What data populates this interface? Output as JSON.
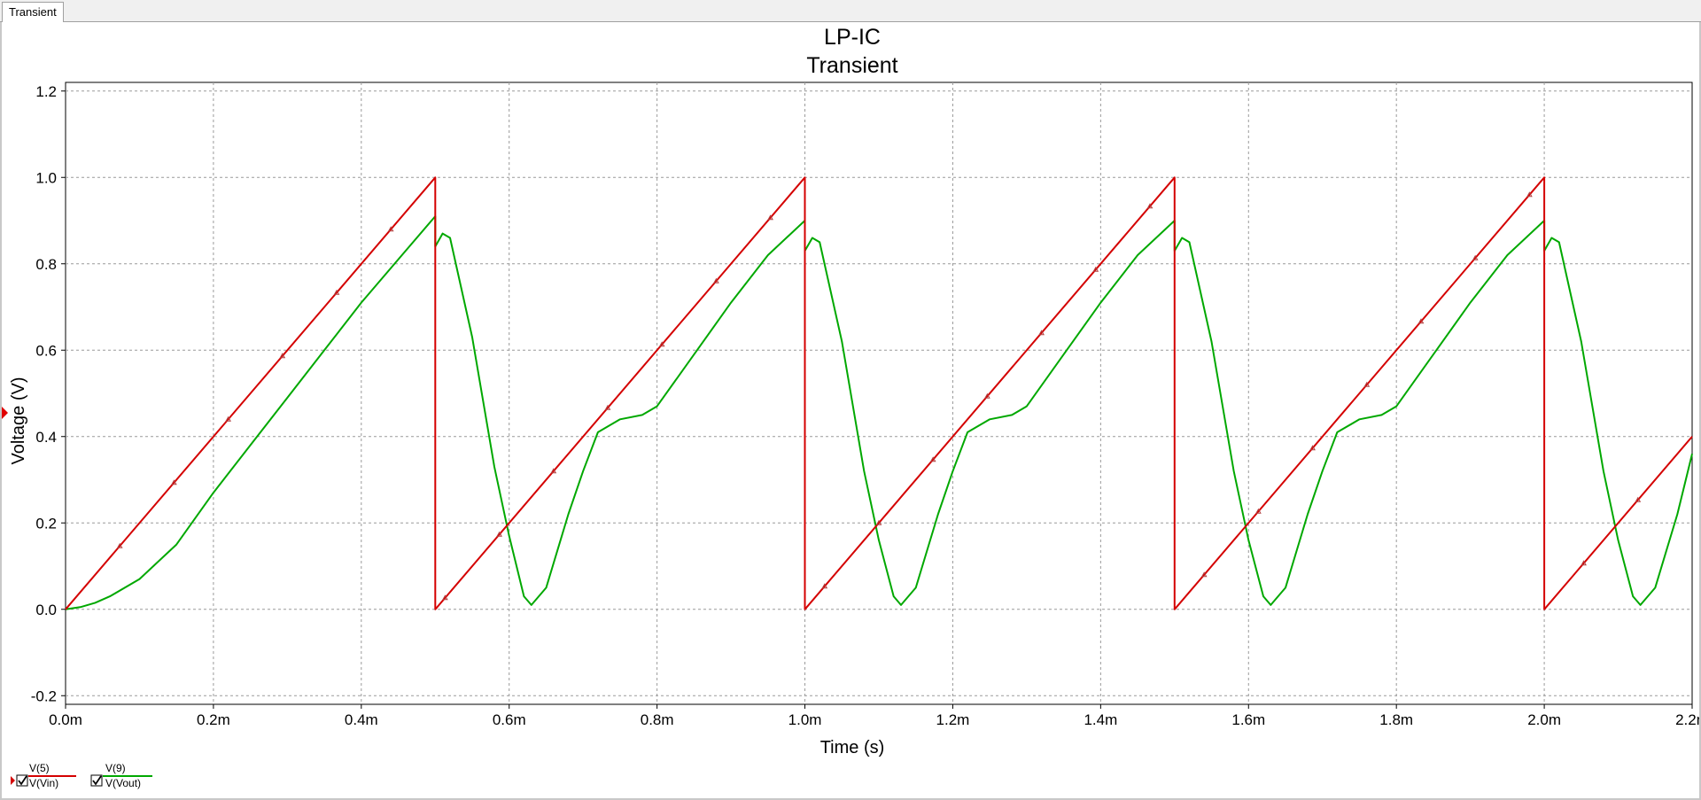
{
  "tabs": [
    {
      "label": "Transient"
    }
  ],
  "chart_data": {
    "type": "line",
    "title": "LP-IC",
    "subtitle": "Transient",
    "xlabel": "Time (s)",
    "ylabel": "Voltage (V)",
    "xlim": [
      0,
      0.0022
    ],
    "ylim": [
      -0.22,
      1.22
    ],
    "x_ticks": [
      0,
      0.0002,
      0.0004,
      0.0006,
      0.0008,
      0.001,
      0.0012,
      0.0014,
      0.0016,
      0.0018,
      0.002,
      0.0022
    ],
    "x_tick_labels": [
      "0.0m",
      "0.2m",
      "0.4m",
      "0.6m",
      "0.8m",
      "1.0m",
      "1.2m",
      "1.4m",
      "1.6m",
      "1.8m",
      "2.0m",
      "2.2m"
    ],
    "y_ticks": [
      -0.2,
      0,
      0.2,
      0.4,
      0.6,
      0.8,
      1.0,
      1.2
    ],
    "y_tick_labels": [
      "-0.2",
      "0.0",
      "0.2",
      "0.4",
      "0.6",
      "0.8",
      "1.0",
      "1.2"
    ],
    "grid": true,
    "legend_position": "bottom-left",
    "series": [
      {
        "name": "V(Vin)",
        "probe": "V(5)",
        "color": "#d40000",
        "marker": "triangle",
        "visible": true,
        "x": [
          0,
          0.0005,
          0.0005,
          0.001,
          0.001,
          0.0015,
          0.0015,
          0.002,
          0.002,
          0.0022
        ],
        "y": [
          0,
          1.0,
          0,
          1.0,
          0,
          1.0,
          0,
          1.0,
          0,
          0.4
        ]
      },
      {
        "name": "V(Vout)",
        "probe": "V(9)",
        "color": "#00a800",
        "marker": "none",
        "visible": true,
        "x": [
          0,
          2e-05,
          4e-05,
          6e-05,
          0.0001,
          0.00015,
          0.0002,
          0.00025,
          0.0003,
          0.00035,
          0.0004,
          0.00045,
          0.0005,
          0.0005,
          0.00051,
          0.00052,
          0.00055,
          0.00058,
          0.0006,
          0.00062,
          0.00063,
          0.00065,
          0.00068,
          0.0007,
          0.00072,
          0.00075,
          0.00078,
          0.0008,
          0.00085,
          0.0009,
          0.00095,
          0.001,
          0.001,
          0.00101,
          0.00102,
          0.00105,
          0.00108,
          0.0011,
          0.00112,
          0.00113,
          0.00115,
          0.00118,
          0.0012,
          0.00122,
          0.00125,
          0.00128,
          0.0013,
          0.00135,
          0.0014,
          0.00145,
          0.0015,
          0.0015,
          0.00151,
          0.00152,
          0.00155,
          0.00158,
          0.0016,
          0.00162,
          0.00163,
          0.00165,
          0.00168,
          0.0017,
          0.00172,
          0.00175,
          0.00178,
          0.0018,
          0.00185,
          0.0019,
          0.00195,
          0.002,
          0.002,
          0.00201,
          0.00202,
          0.00205,
          0.00208,
          0.0021,
          0.00212,
          0.00213,
          0.00215,
          0.00218,
          0.0022
        ],
        "y": [
          0,
          0.005,
          0.015,
          0.03,
          0.07,
          0.15,
          0.27,
          0.38,
          0.49,
          0.6,
          0.71,
          0.81,
          0.91,
          0.84,
          0.87,
          0.86,
          0.63,
          0.33,
          0.17,
          0.03,
          0.01,
          0.05,
          0.22,
          0.32,
          0.41,
          0.44,
          0.45,
          0.47,
          0.59,
          0.71,
          0.82,
          0.9,
          0.83,
          0.86,
          0.85,
          0.62,
          0.32,
          0.16,
          0.03,
          0.01,
          0.05,
          0.22,
          0.32,
          0.41,
          0.44,
          0.45,
          0.47,
          0.59,
          0.71,
          0.82,
          0.9,
          0.83,
          0.86,
          0.85,
          0.62,
          0.32,
          0.16,
          0.03,
          0.01,
          0.05,
          0.22,
          0.32,
          0.41,
          0.44,
          0.45,
          0.47,
          0.59,
          0.71,
          0.82,
          0.9,
          0.83,
          0.86,
          0.85,
          0.62,
          0.32,
          0.16,
          0.03,
          0.01,
          0.05,
          0.22,
          0.36
        ]
      }
    ]
  }
}
